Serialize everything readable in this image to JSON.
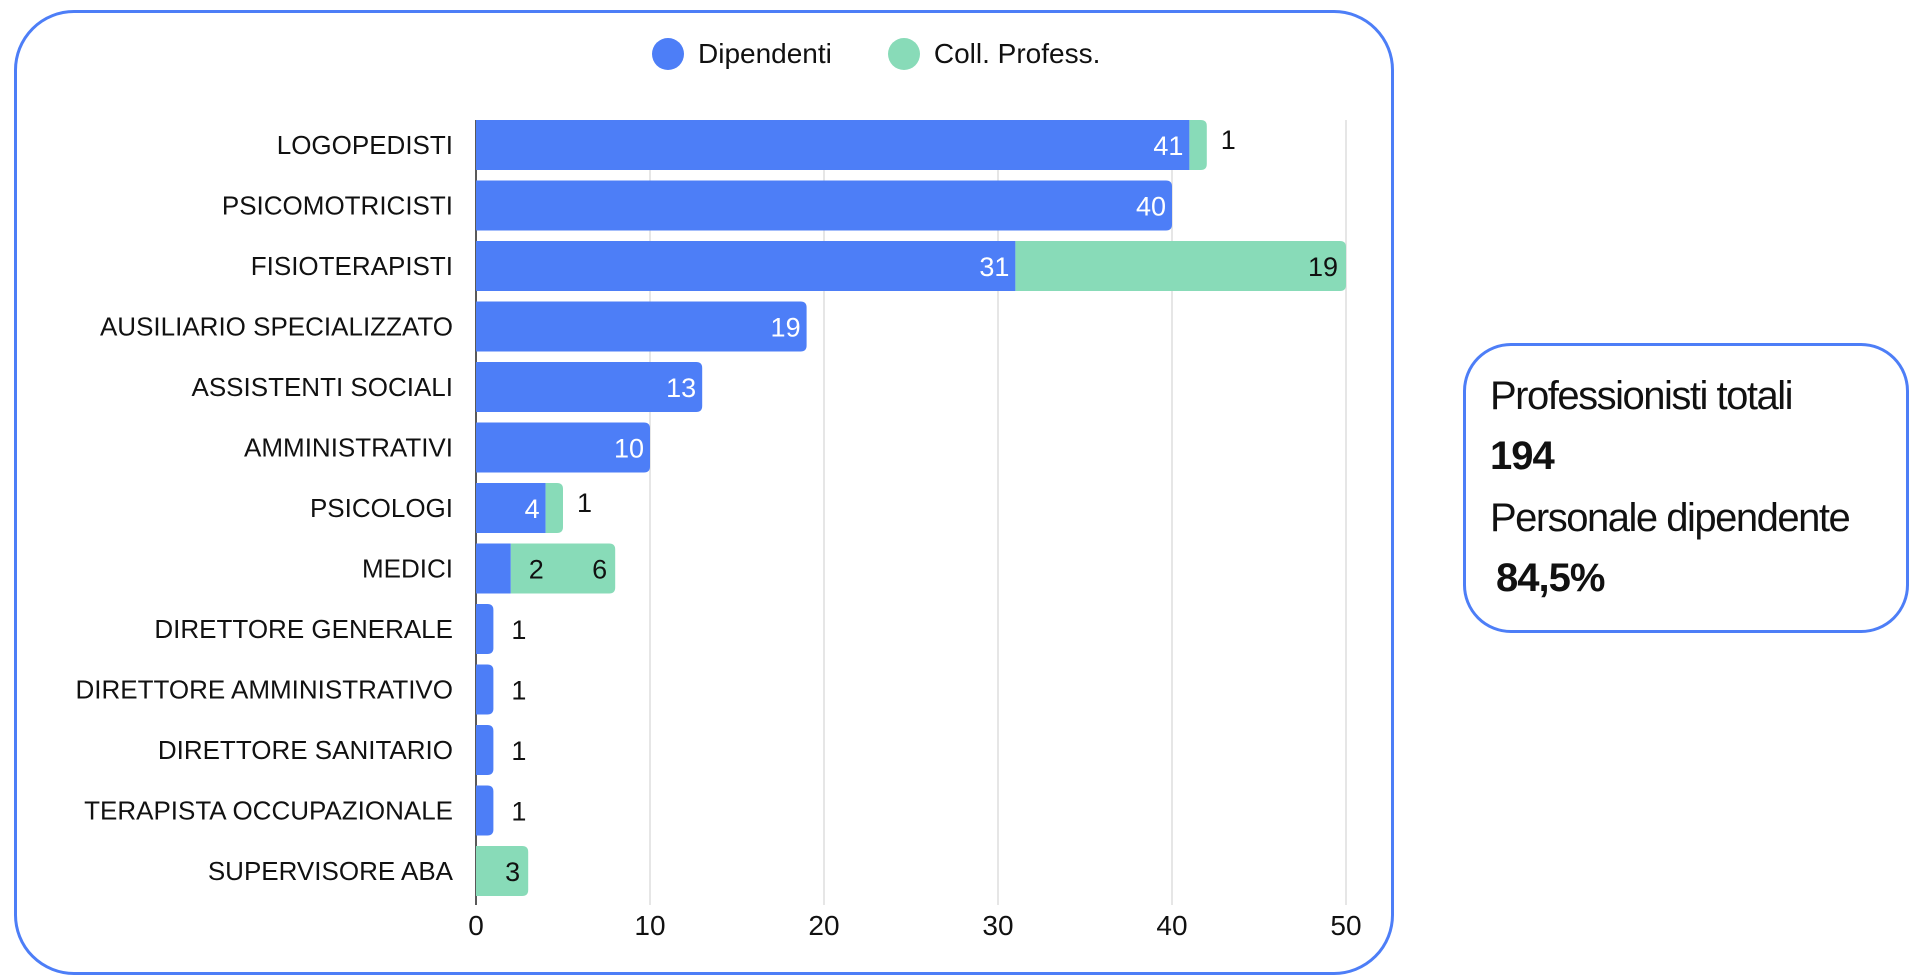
{
  "colors": {
    "dipendenti": "#4d7ef7",
    "collaboratori": "#88dbb8",
    "frame": "#4d7ef7",
    "grid": "#dddddd"
  },
  "legend": {
    "dipendenti_label": "Dipendenti",
    "collaboratori_label": "Coll. Profess."
  },
  "summary": {
    "totale_label": "Professionisti totali",
    "totale_value": "194",
    "dipendenti_label": "Personale dipendente",
    "dipendenti_value": "84,5%"
  },
  "chart_data": {
    "type": "bar",
    "orientation": "horizontal",
    "stacked": true,
    "categories": [
      "LOGOPEDISTI",
      "PSICOMOTRICISTI",
      "FISIOTERAPISTI",
      "AUSILIARIO SPECIALIZZATO",
      "ASSISTENTI SOCIALI",
      "AMMINISTRATIVI",
      "PSICOLOGI",
      "MEDICI",
      "DIRETTORE GENERALE",
      "DIRETTORE AMMINISTRATIVO",
      "DIRETTORE SANITARIO",
      "TERAPISTA OCCUPAZIONALE",
      "SUPERVISORE ABA"
    ],
    "series": [
      {
        "name": "Dipendenti",
        "values": [
          41,
          40,
          31,
          19,
          13,
          10,
          4,
          2,
          1,
          1,
          1,
          1,
          0
        ]
      },
      {
        "name": "Coll. Profess.",
        "values": [
          1,
          0,
          19,
          0,
          0,
          0,
          1,
          6,
          0,
          0,
          0,
          0,
          3
        ]
      }
    ],
    "xlim": [
      0,
      50
    ],
    "xticks": [
      0,
      10,
      20,
      30,
      40,
      50
    ],
    "grid": true,
    "legend_position": "top"
  }
}
